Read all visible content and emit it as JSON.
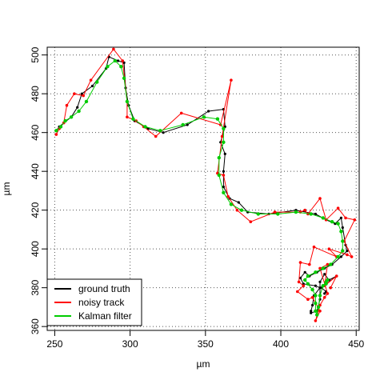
{
  "chart_data": {
    "type": "line",
    "title": "",
    "xlabel": "µm",
    "ylabel": "µm",
    "xlim": [
      245,
      452
    ],
    "ylim": [
      358,
      504
    ],
    "x_ticks": [
      250,
      300,
      350,
      400,
      450
    ],
    "y_ticks": [
      360,
      380,
      400,
      420,
      440,
      460,
      480,
      500
    ],
    "grid": true,
    "legend_position": "bottom-left",
    "series": [
      {
        "name": "ground truth",
        "color": "#000000",
        "points": [
          [
            251,
            461
          ],
          [
            253,
            463
          ],
          [
            256,
            465
          ],
          [
            261,
            468
          ],
          [
            265,
            473
          ],
          [
            268,
            480
          ],
          [
            275,
            484
          ],
          [
            284,
            493
          ],
          [
            286,
            499
          ],
          [
            292,
            497
          ],
          [
            296,
            496
          ],
          [
            297,
            483
          ],
          [
            299,
            474
          ],
          [
            303,
            466
          ],
          [
            312,
            462
          ],
          [
            322,
            460
          ],
          [
            338,
            464
          ],
          [
            352,
            471
          ],
          [
            362,
            472
          ],
          [
            363,
            463
          ],
          [
            360,
            455
          ],
          [
            363,
            449
          ],
          [
            362,
            440
          ],
          [
            362,
            432
          ],
          [
            366,
            426
          ],
          [
            372,
            424
          ],
          [
            378,
            419
          ],
          [
            392,
            418
          ],
          [
            410,
            420
          ],
          [
            423,
            418
          ],
          [
            430,
            415
          ],
          [
            436,
            413
          ],
          [
            440,
            416
          ],
          [
            441,
            411
          ],
          [
            443,
            402
          ],
          [
            444,
            399
          ],
          [
            440,
            396
          ],
          [
            434,
            392
          ],
          [
            429,
            390
          ],
          [
            424,
            388
          ],
          [
            419,
            386
          ],
          [
            416,
            388
          ],
          [
            413,
            385
          ],
          [
            415,
            382
          ],
          [
            423,
            381
          ],
          [
            426,
            380
          ],
          [
            422,
            376
          ],
          [
            421,
            371
          ],
          [
            420,
            368
          ],
          [
            420,
            367
          ],
          [
            424,
            368
          ],
          [
            426,
            374
          ],
          [
            426,
            383
          ],
          [
            429,
            387
          ],
          [
            432,
            384
          ],
          [
            437,
            386
          ],
          [
            427,
            380
          ],
          [
            430,
            378
          ],
          [
            429,
            377
          ]
        ]
      },
      {
        "name": "noisy track",
        "color": "#ff0000",
        "points": [
          [
            251,
            459
          ],
          [
            253,
            462
          ],
          [
            256,
            465
          ],
          [
            258,
            474
          ],
          [
            263,
            480
          ],
          [
            269,
            479
          ],
          [
            274,
            487
          ],
          [
            289,
            503
          ],
          [
            295,
            497
          ],
          [
            298,
            476
          ],
          [
            298,
            468
          ],
          [
            304,
            466
          ],
          [
            309,
            463
          ],
          [
            317,
            458
          ],
          [
            334,
            470
          ],
          [
            360,
            464
          ],
          [
            367,
            487
          ],
          [
            361,
            458
          ],
          [
            358,
            439
          ],
          [
            362,
            438
          ],
          [
            365,
            427
          ],
          [
            371,
            420
          ],
          [
            380,
            414
          ],
          [
            396,
            419
          ],
          [
            413,
            419
          ],
          [
            416,
            420
          ],
          [
            418,
            418
          ],
          [
            426,
            426
          ],
          [
            430,
            415
          ],
          [
            438,
            421
          ],
          [
            443,
            416
          ],
          [
            449,
            415
          ],
          [
            442,
            404
          ],
          [
            447,
            396
          ],
          [
            444,
            397
          ],
          [
            432,
            400
          ],
          [
            437,
            396
          ],
          [
            422,
            401
          ],
          [
            419,
            392
          ],
          [
            413,
            393
          ],
          [
            412,
            383
          ],
          [
            415,
            381
          ],
          [
            411,
            378
          ],
          [
            418,
            374
          ],
          [
            421,
            375
          ],
          [
            426,
            368
          ],
          [
            423,
            363
          ],
          [
            426,
            371
          ],
          [
            429,
            375
          ],
          [
            431,
            377
          ],
          [
            426,
            390
          ],
          [
            431,
            392
          ],
          [
            429,
            381
          ],
          [
            437,
            386
          ],
          [
            433,
            380
          ]
        ]
      },
      {
        "name": "Kalman filter",
        "color": "#00cc00",
        "points": [
          [
            251,
            461
          ],
          [
            254,
            463
          ],
          [
            257,
            466
          ],
          [
            261,
            468
          ],
          [
            266,
            471
          ],
          [
            271,
            476
          ],
          [
            278,
            486
          ],
          [
            285,
            494
          ],
          [
            290,
            497
          ],
          [
            294,
            494
          ],
          [
            296,
            488
          ],
          [
            298,
            476
          ],
          [
            302,
            467
          ],
          [
            310,
            463
          ],
          [
            320,
            461
          ],
          [
            335,
            464
          ],
          [
            349,
            468
          ],
          [
            358,
            467
          ],
          [
            362,
            462
          ],
          [
            362,
            455
          ],
          [
            359,
            447
          ],
          [
            359,
            438
          ],
          [
            362,
            429
          ],
          [
            367,
            423
          ],
          [
            374,
            420
          ],
          [
            385,
            418
          ],
          [
            398,
            418
          ],
          [
            410,
            419
          ],
          [
            420,
            418
          ],
          [
            428,
            416
          ],
          [
            434,
            414
          ],
          [
            438,
            413
          ],
          [
            440,
            409
          ],
          [
            441,
            404
          ],
          [
            441,
            399
          ],
          [
            438,
            396
          ],
          [
            433,
            392
          ],
          [
            428,
            390
          ],
          [
            423,
            388
          ],
          [
            418,
            386
          ],
          [
            416,
            384
          ],
          [
            418,
            382
          ],
          [
            421,
            379
          ],
          [
            423,
            376
          ],
          [
            423,
            372
          ],
          [
            423,
            368
          ],
          [
            424,
            366
          ],
          [
            425,
            370
          ],
          [
            426,
            376
          ],
          [
            428,
            381
          ],
          [
            430,
            383
          ],
          [
            431,
            384
          ],
          [
            430,
            382
          ]
        ]
      }
    ],
    "legend": {
      "entries": [
        "ground truth",
        "noisy track",
        "Kalman filter"
      ]
    }
  }
}
